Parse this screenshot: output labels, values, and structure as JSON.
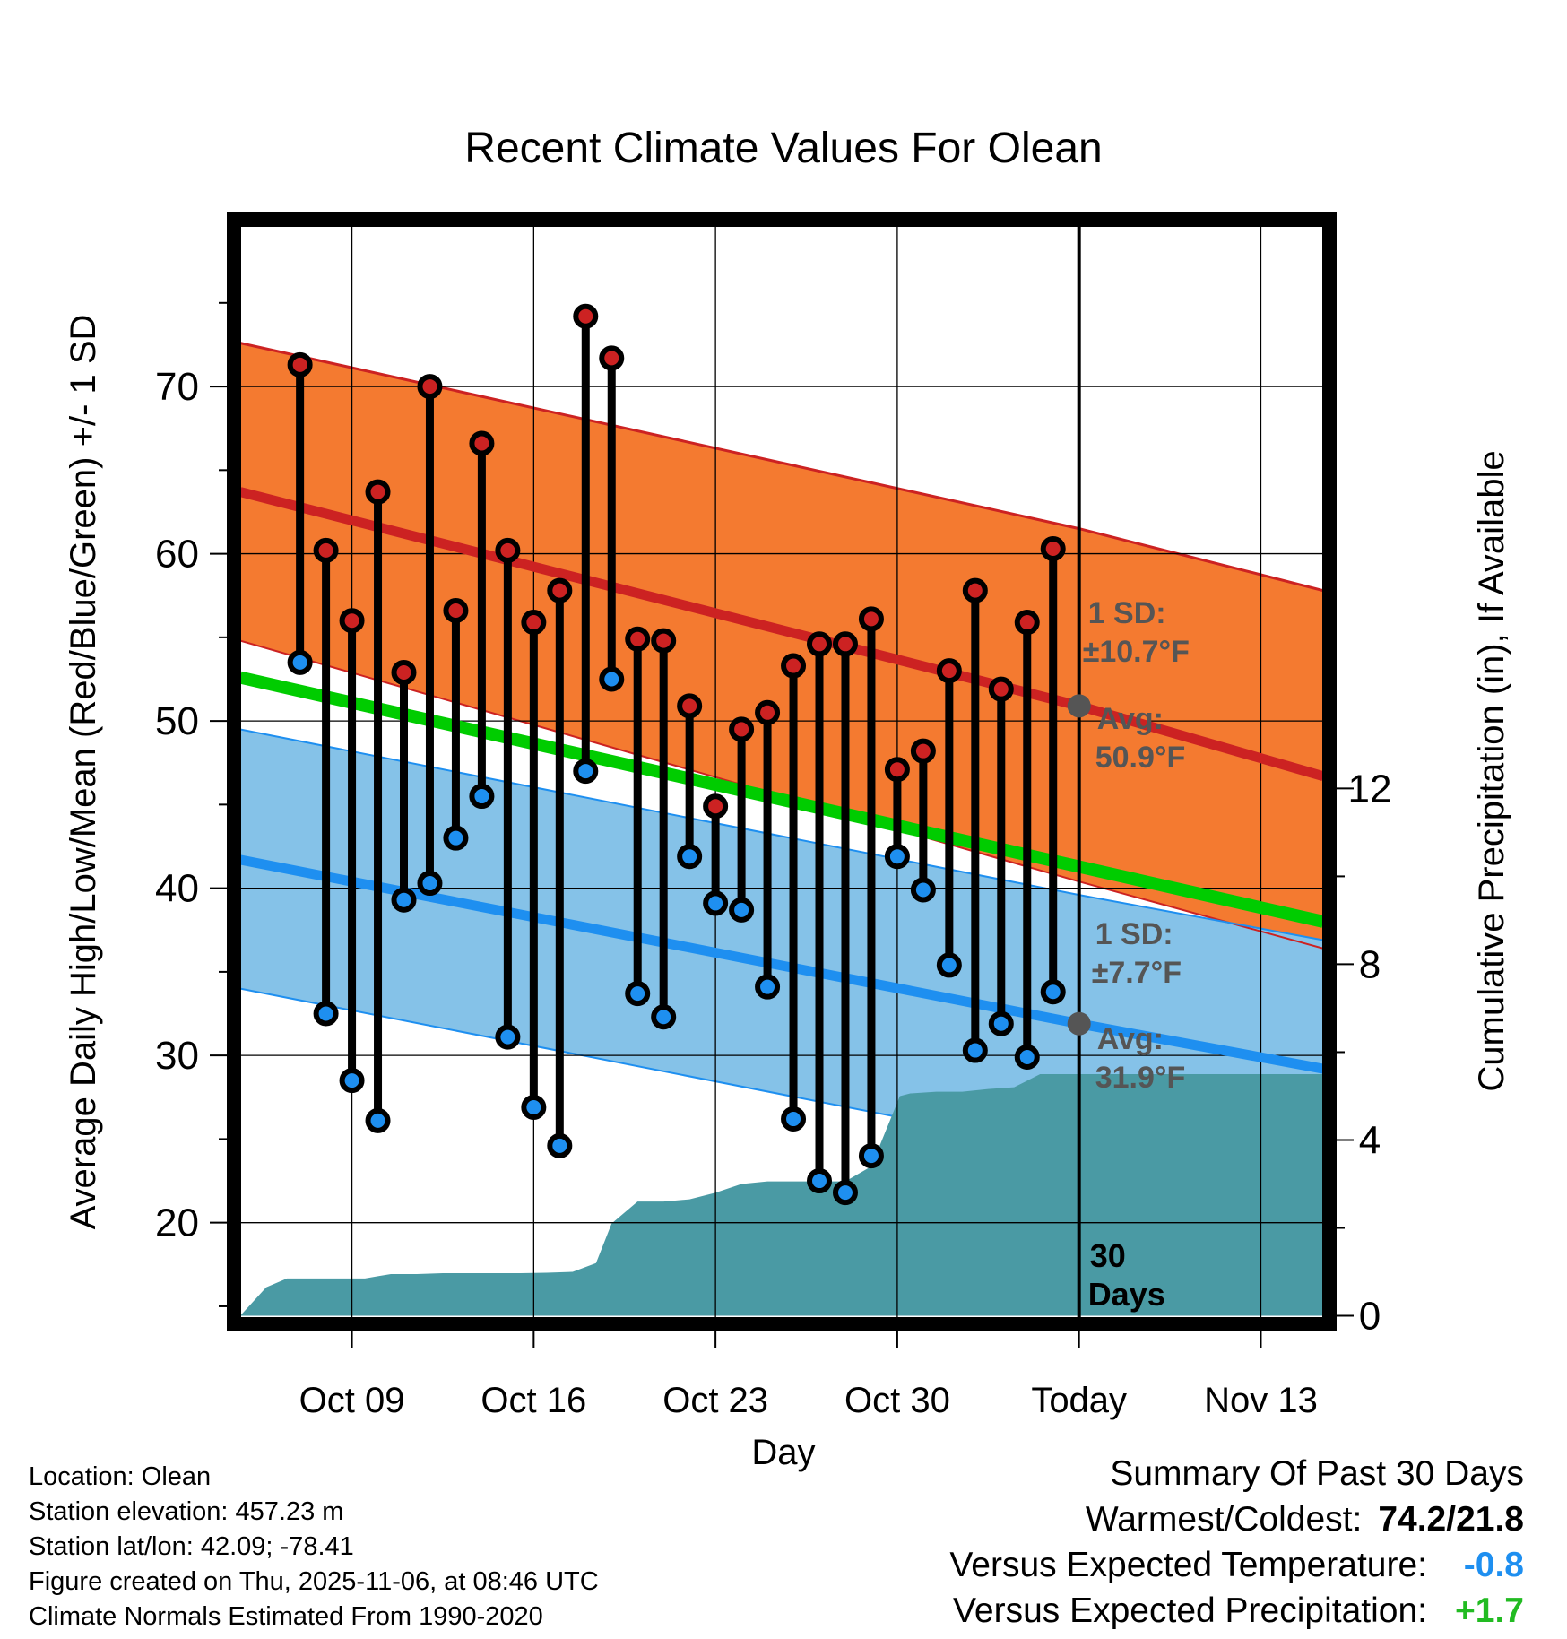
{
  "chart_data": {
    "type": "line",
    "title": "Recent Climate Values For Olean",
    "xlabel": "Day",
    "ylabel": "Average Daily High/Low/Mean (Red/Blue/Green) +/- 1 SD",
    "y2label": "Cumulative Precipitation (in), If Available",
    "xlim": [
      -4.3,
      37.4
    ],
    "ylim": [
      14.3,
      79.6
    ],
    "y2lim": [
      -0.05,
      24.8
    ],
    "x_ticks": [
      {
        "x": 0,
        "label": "Oct 09"
      },
      {
        "x": 7,
        "label": "Oct 16"
      },
      {
        "x": 14,
        "label": "Oct 23"
      },
      {
        "x": 21,
        "label": "Oct 30"
      },
      {
        "x": 28,
        "label": "Today"
      },
      {
        "x": 35,
        "label": "Nov 13"
      }
    ],
    "y_ticks": [
      20,
      30,
      40,
      50,
      60,
      70
    ],
    "y2_ticks": [
      0,
      4,
      8,
      12
    ],
    "days_x": [
      -2,
      -1,
      0,
      1,
      2,
      3,
      4,
      5,
      6,
      7,
      8,
      9,
      10,
      11,
      12,
      13,
      14,
      15,
      16,
      17,
      18,
      19,
      20,
      21,
      22,
      23,
      24,
      25,
      26,
      27
    ],
    "highs": [
      71.3,
      60.2,
      56.0,
      63.7,
      52.9,
      70.0,
      56.6,
      66.6,
      60.2,
      55.9,
      57.8,
      74.2,
      71.7,
      54.9,
      54.8,
      50.9,
      44.9,
      49.5,
      50.5,
      53.3,
      54.6,
      54.6,
      56.1,
      47.1,
      48.2,
      53.0,
      57.8,
      51.9,
      55.9,
      60.3
    ],
    "lows": [
      53.5,
      32.5,
      28.5,
      26.1,
      39.3,
      40.3,
      43.0,
      45.5,
      31.1,
      26.9,
      24.6,
      47.0,
      52.5,
      33.7,
      32.3,
      41.9,
      39.1,
      38.7,
      34.1,
      26.2,
      22.5,
      21.8,
      24.0,
      41.9,
      39.9,
      35.4,
      30.3,
      31.9,
      29.9,
      33.8
    ],
    "normal_high": {
      "x": [
        -4.3,
        28,
        37.4
      ],
      "avg": [
        63.7,
        50.9,
        46.7
      ],
      "upper": [
        72.6,
        61.5,
        57.8
      ],
      "lower": [
        54.8,
        40.4,
        36.4
      ]
    },
    "normal_low": {
      "x": [
        -4.3,
        28,
        37.4
      ],
      "avg": [
        41.7,
        31.9,
        29.2
      ],
      "upper": [
        49.5,
        39.6,
        36.9
      ],
      "lower": [
        34.0,
        24.2,
        21.5
      ]
    },
    "normal_mean": {
      "x": [
        -4.3,
        37.4
      ],
      "values": [
        52.6,
        38.0
      ]
    },
    "precip": {
      "x": [
        -4.3,
        -3.3,
        -2.5,
        -1.5,
        -0.5,
        0.5,
        1,
        1.5,
        2.5,
        3.5,
        4.5,
        5.5,
        6.5,
        7.5,
        8.5,
        9.4,
        10,
        11,
        12,
        13,
        14,
        15,
        16,
        17,
        18,
        19,
        20,
        21.1,
        21.5,
        22.5,
        23.5,
        24.5,
        25.5,
        26.5,
        27.5,
        28,
        30,
        34,
        37.4
      ],
      "values": [
        0.0,
        0.65,
        0.85,
        0.85,
        0.85,
        0.85,
        0.9,
        0.95,
        0.95,
        0.97,
        0.97,
        0.97,
        0.97,
        0.98,
        1.0,
        1.2,
        2.1,
        2.6,
        2.6,
        2.65,
        2.8,
        3.0,
        3.06,
        3.06,
        3.06,
        3.06,
        3.4,
        5.0,
        5.06,
        5.1,
        5.1,
        5.16,
        5.2,
        5.5,
        5.5,
        5.5,
        5.5,
        5.5,
        5.5
      ]
    },
    "today_x": 28,
    "annotations": {
      "high_sd": {
        "line1": "1 SD:",
        "line2": "±10.7°F"
      },
      "high_avg": {
        "line1": "Avg:",
        "line2": "50.9°F"
      },
      "low_sd": {
        "line1": "1 SD:",
        "line2": "±7.7°F"
      },
      "low_avg": {
        "line1": "Avg:",
        "line2": "31.9°F"
      },
      "days": {
        "line1": "30",
        "line2": "Days"
      }
    }
  },
  "info": {
    "location": "Location: Olean",
    "elevation": "Station elevation: 457.23 m",
    "latlon": "Station lat/lon: 42.09; -78.41",
    "created": "Figure created on Thu, 2025-11-06, at 08:46 UTC",
    "normals": "Climate Normals Estimated From 1990-2020"
  },
  "summary": {
    "title": "Summary Of Past 30 Days",
    "warm_cold_label": "Warmest/Coldest:",
    "warm_cold_value": "74.2/21.8",
    "temp_label": "Versus Expected Temperature:",
    "temp_value": "-0.8",
    "precip_label": "Versus Expected Precipitation:",
    "precip_value": "+1.7"
  },
  "colors": {
    "high_band": "#f47a30",
    "high_line": "#cc2222",
    "low_band": "#85c2e8",
    "low_line": "#1e8ff0",
    "mean_line": "#00cc00",
    "precip_fill": "#4a9aa4",
    "high_dot": "#cc2222",
    "low_dot": "#1e8ff0",
    "annotation_text": "#555555",
    "temp_value": "#1e8ff0",
    "precip_value": "#22bb22"
  }
}
